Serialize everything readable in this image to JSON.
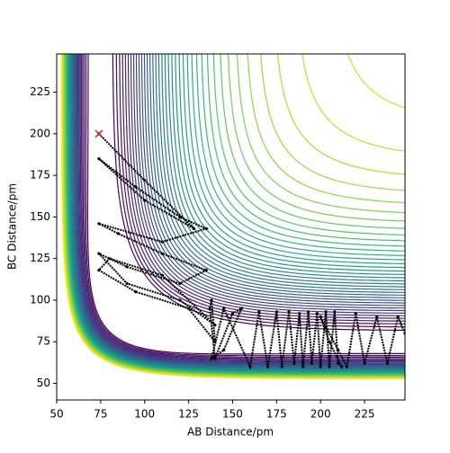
{
  "chart_data": {
    "type": "contour",
    "xlabel": "AB Distance/pm",
    "ylabel": "BC Distance/pm",
    "xlim": [
      50,
      248
    ],
    "ylim": [
      40,
      248
    ],
    "xticks": [
      50,
      75,
      100,
      125,
      150,
      175,
      200,
      225
    ],
    "yticks": [
      50,
      75,
      100,
      125,
      150,
      175,
      200,
      225
    ],
    "colormap": "viridis",
    "levels": [
      -0.95,
      -0.925,
      -0.9,
      -0.875,
      -0.85,
      -0.825,
      -0.8,
      -0.775,
      -0.75,
      -0.725,
      -0.7,
      -0.675,
      -0.65,
      -0.625,
      -0.6,
      -0.575,
      -0.55,
      -0.525,
      -0.5,
      -0.475,
      -0.45,
      -0.425,
      -0.4,
      -0.375,
      -0.35,
      -0.325,
      -0.3,
      -0.275,
      -0.25,
      -0.225,
      -0.2,
      -0.175,
      -0.15,
      -0.125,
      -0.1,
      -0.075,
      -0.05,
      -0.025,
      0,
      0.025,
      0.05
    ],
    "trajectory": {
      "color": "#000000",
      "x": [
        74,
        100,
        128,
        100,
        74,
        95,
        120,
        135,
        110,
        74,
        85,
        110,
        135,
        120,
        90,
        74,
        90,
        120,
        140,
        110,
        80,
        74,
        95,
        125,
        140,
        138,
        137,
        140,
        150,
        155,
        145,
        138,
        145,
        160,
        165,
        170,
        175,
        178,
        182,
        185,
        188,
        190,
        193,
        195,
        198,
        200,
        203,
        205,
        208,
        210,
        212,
        205,
        200,
        210,
        215,
        220,
        225,
        232,
        238,
        244,
        248
      ],
      "y": [
        200,
        172,
        143,
        160,
        185,
        168,
        150,
        143,
        135,
        146,
        140,
        128,
        118,
        110,
        120,
        128,
        110,
        100,
        85,
        115,
        125,
        118,
        105,
        95,
        75,
        100,
        95,
        65,
        92,
        95,
        70,
        65,
        95,
        60,
        93,
        60,
        93,
        60,
        93,
        62,
        92,
        60,
        93,
        62,
        92,
        60,
        93,
        60,
        93,
        62,
        60,
        75,
        90,
        70,
        60,
        92,
        62,
        90,
        62,
        90,
        80
      ]
    },
    "start": {
      "x": 74,
      "y": 200,
      "color": "#d62728"
    }
  }
}
